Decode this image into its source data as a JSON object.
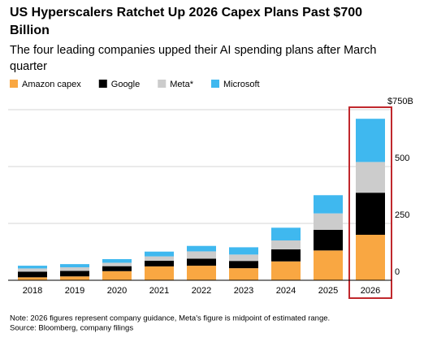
{
  "chart_data": {
    "type": "stacked-bar",
    "title": [
      "US Hyperscalers Ratchet Up 2026 Capex Plans Past $700",
      "Billion"
    ],
    "subtitle": [
      "The four leading companies upped their AI spending plans after March",
      "quarter"
    ],
    "categories": [
      "2018",
      "2019",
      "2020",
      "2021",
      "2022",
      "2023",
      "2024",
      "2025",
      "2026"
    ],
    "series": [
      {
        "name": "Amazon capex",
        "color": "#f9a742",
        "values": [
          13,
          17,
          40,
          61,
          64,
          53,
          83,
          131,
          200
        ]
      },
      {
        "name": "Google",
        "color": "#000000",
        "values": [
          25,
          24,
          22,
          25,
          31,
          32,
          53,
          91,
          185
        ]
      },
      {
        "name": "Meta*",
        "color": "#cccccc",
        "values": [
          14,
          16,
          15,
          19,
          32,
          28,
          39,
          72,
          135
        ]
      },
      {
        "name": "Microsoft",
        "color": "#3fb8ef",
        "values": [
          12,
          14,
          16,
          21,
          24,
          32,
          56,
          80,
          190
        ]
      }
    ],
    "ylim": [
      0,
      750
    ],
    "yticks": [
      0,
      250,
      500,
      {
        "value": 750,
        "label": "$750B"
      }
    ],
    "grid": true,
    "notes": [
      "Note: 2026 figures represent company guidance, Meta's figure is midpoint of estimated range.",
      "Source: Bloomberg, company filings"
    ]
  }
}
